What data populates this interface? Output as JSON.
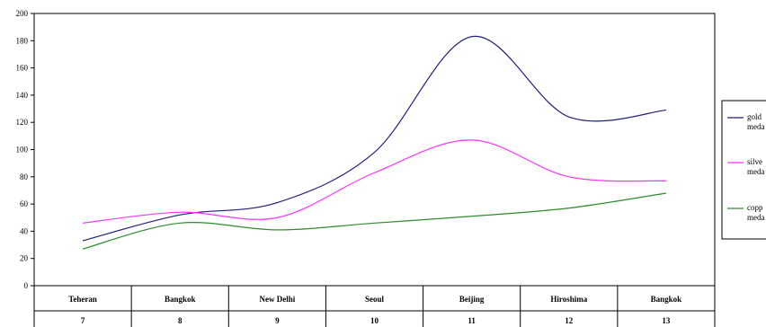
{
  "chart_data": {
    "type": "line",
    "categories": [
      "Teheran",
      "Bangkok",
      "New Delhi",
      "Seoul",
      "Beijing",
      "Hiroshima",
      "Bangkok"
    ],
    "sub_labels": [
      "7",
      "8",
      "9",
      "10",
      "11",
      "12",
      "13"
    ],
    "ylim": [
      0,
      200
    ],
    "yticks": [
      0,
      20,
      40,
      60,
      80,
      100,
      120,
      140,
      160,
      180,
      200
    ],
    "grid": false,
    "legend_position": "right",
    "series": [
      {
        "name": "gold medal",
        "legend_lines": [
          "gold",
          "meda"
        ],
        "color": "#1f1f7a",
        "values": [
          33,
          52,
          61,
          98,
          183,
          124,
          129
        ]
      },
      {
        "name": "silver medal",
        "legend_lines": [
          "silve",
          "meda"
        ],
        "color": "#ff33ff",
        "values": [
          46,
          54,
          50,
          83,
          107,
          80,
          77
        ]
      },
      {
        "name": "copper medal",
        "legend_lines": [
          "copp",
          "meda"
        ],
        "color": "#2e8b2e",
        "values": [
          27,
          46,
          41,
          46,
          51,
          57,
          68
        ]
      }
    ]
  }
}
